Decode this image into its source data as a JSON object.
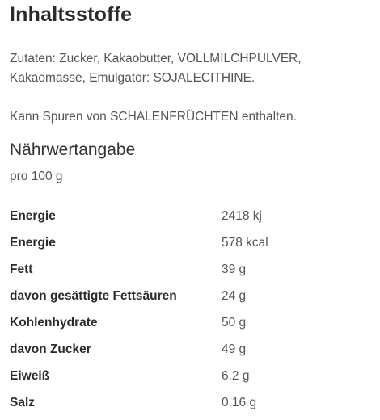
{
  "heading": "Inhaltsstoffe",
  "ingredients": "Zutaten: Zucker, Kakaobutter, VOLLMILCHPULVER, Kakaomasse, Emulgator: SOJALECITHINE.",
  "allergy_note": "Kann Spuren von SCHALENFRÜCHTEN enthalten.",
  "nutrition": {
    "title": "Nährwertangabe",
    "per": "pro 100 g",
    "rows": [
      {
        "name": "Energie",
        "value": "2418 kj"
      },
      {
        "name": "Energie",
        "value": "578 kcal"
      },
      {
        "name": "Fett",
        "value": "39 g"
      },
      {
        "name": "davon gesättigte Fettsäuren",
        "value": "24 g"
      },
      {
        "name": "Kohlenhydrate",
        "value": "50 g"
      },
      {
        "name": "davon Zucker",
        "value": "49 g"
      },
      {
        "name": "Eiweiß",
        "value": "6.2 g"
      },
      {
        "name": "Salz",
        "value": "0.16 g"
      }
    ]
  }
}
